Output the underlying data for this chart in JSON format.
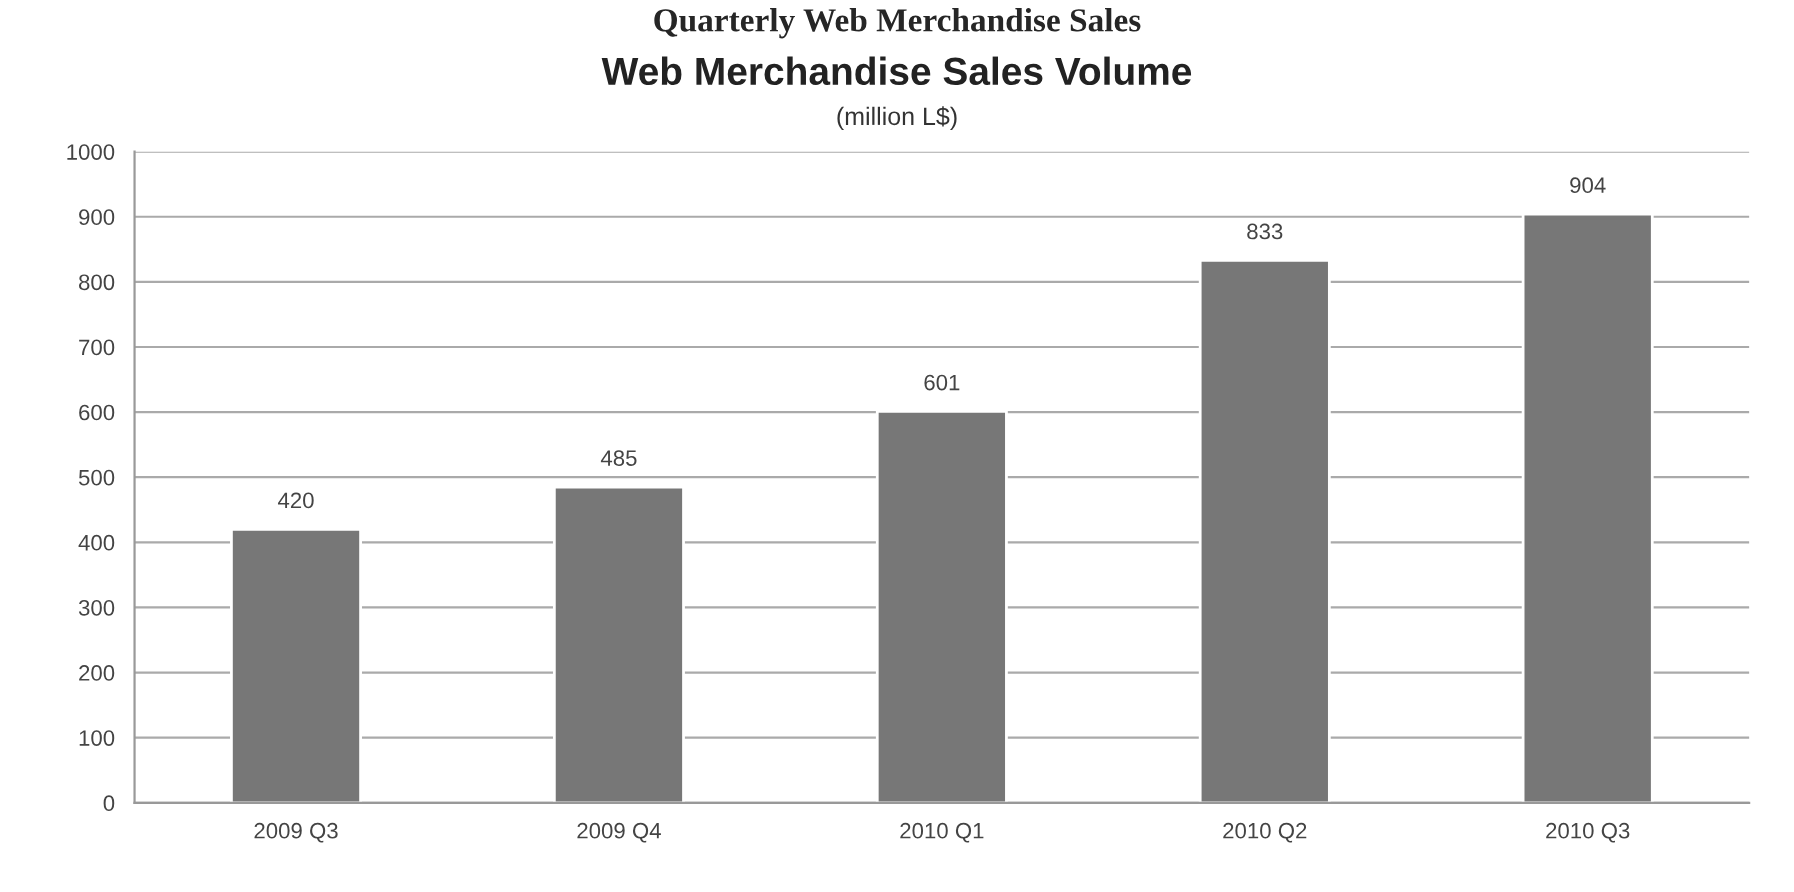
{
  "chart_data": {
    "type": "bar",
    "title": "Web Merchandise Sales Volume",
    "subtitle": "(million L$)",
    "annotations": [
      "Quarterly Web Merchandise Sales"
    ],
    "categories": [
      "2009 Q3",
      "2009 Q4",
      "2010 Q1",
      "2010 Q2",
      "2010 Q3"
    ],
    "values": [
      420,
      485,
      601,
      833,
      904
    ],
    "color": "#777777",
    "ylim": [
      0,
      1000
    ],
    "yticks": [
      0,
      100,
      200,
      300,
      400,
      500,
      600,
      700,
      800,
      900,
      1000
    ],
    "grid": "y",
    "data_labels": true
  }
}
